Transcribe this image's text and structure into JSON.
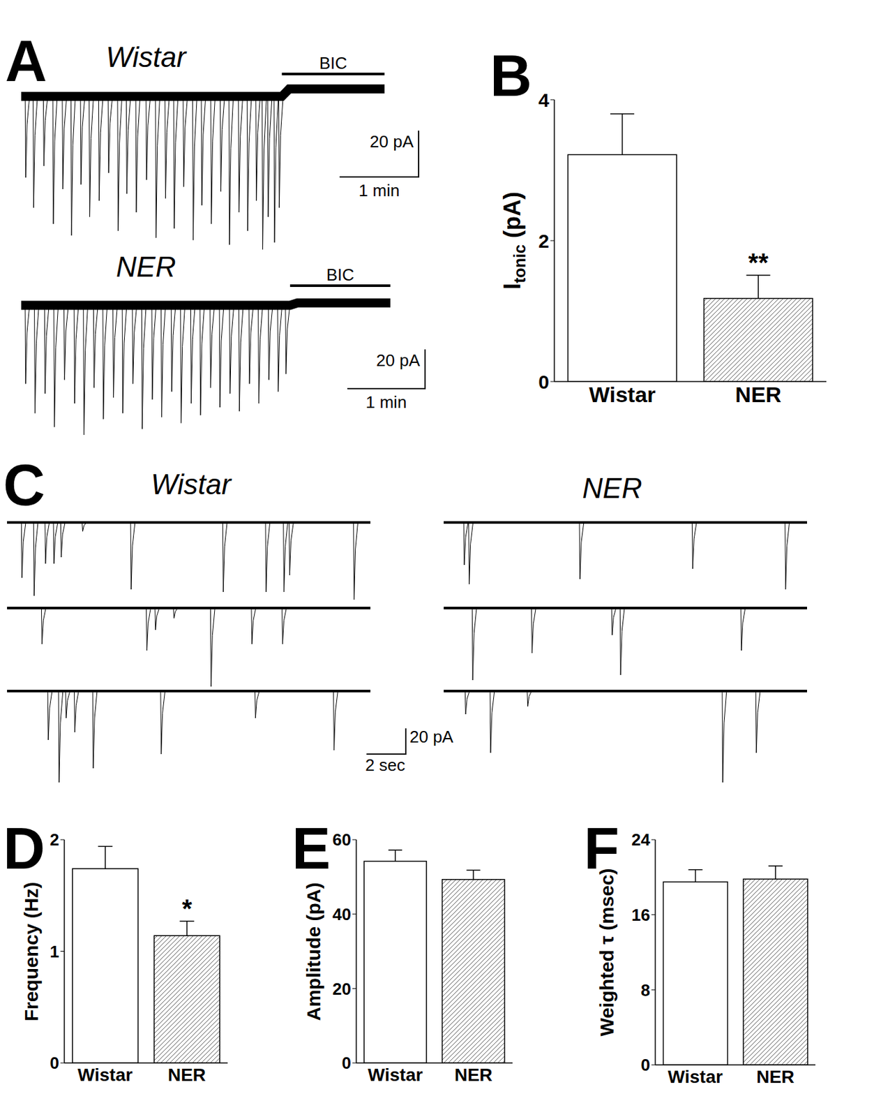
{
  "chart_data": [
    {
      "panel": "A",
      "type": "trace",
      "tick_labels": false,
      "traces": [
        {
          "name": "Wistar",
          "xlim": [
            0,
            4.6
          ],
          "ylim": [
            -70,
            8
          ],
          "baseline": 0,
          "events_t": [
            0.05,
            0.15,
            0.28,
            0.4,
            0.52,
            0.63,
            0.75,
            0.86,
            0.98,
            1.1,
            1.22,
            1.33,
            1.45,
            1.58,
            1.7,
            1.82,
            1.93,
            2.05,
            2.17,
            2.28,
            2.4,
            2.52,
            2.63,
            2.75,
            2.86,
            2.97,
            3.05,
            3.12,
            3.2,
            3.26
          ],
          "events_amp": [
            -35,
            -48,
            -30,
            -55,
            -40,
            -60,
            -38,
            -52,
            -45,
            -33,
            -58,
            -42,
            -50,
            -36,
            -61,
            -44,
            -57,
            -39,
            -62,
            -47,
            -55,
            -41,
            -64,
            -50,
            -58,
            -45,
            -66,
            -52,
            -63,
            -48
          ],
          "drug": {
            "label": "BIC",
            "start": 3.3,
            "end": 4.6,
            "baseline": 3.2
          },
          "scale_bar": {
            "x": 1,
            "x_label": "1 min",
            "y": 20,
            "y_label": "20 pA"
          }
        },
        {
          "name": "NER",
          "xlim": [
            0,
            4.75
          ],
          "ylim": [
            -70,
            8
          ],
          "baseline": 0,
          "events_t": [
            0.05,
            0.17,
            0.3,
            0.42,
            0.55,
            0.68,
            0.8,
            0.93,
            1.05,
            1.18,
            1.3,
            1.43,
            1.55,
            1.68,
            1.8,
            1.93,
            2.05,
            2.18,
            2.3,
            2.43,
            2.55,
            2.68,
            2.8,
            2.93,
            3.05,
            3.18,
            3.3,
            3.4
          ],
          "events_amp": [
            -40,
            -55,
            -45,
            -62,
            -38,
            -50,
            -66,
            -42,
            -58,
            -47,
            -55,
            -40,
            -63,
            -48,
            -57,
            -44,
            -60,
            -50,
            -56,
            -42,
            -52,
            -45,
            -54,
            -40,
            -50,
            -38,
            -44,
            -35
          ],
          "drug": {
            "label": "BIC",
            "start": 3.46,
            "end": 4.75,
            "baseline": 1.2
          },
          "scale_bar": {
            "x": 1,
            "x_label": "1 min",
            "y": 20,
            "y_label": "20 pA"
          }
        }
      ]
    },
    {
      "panel": "B",
      "type": "bar",
      "categories": [
        "Wistar",
        "NER"
      ],
      "values": [
        3.22,
        1.18
      ],
      "errors": [
        0.58,
        0.33
      ],
      "significance": [
        null,
        "**"
      ],
      "ylabel": {
        "base": "I",
        "sub": "tonic",
        "unit": "(pA)"
      },
      "ylim": [
        0,
        4
      ],
      "yticks": [
        0,
        2,
        4
      ],
      "colors": [
        "#ffffff",
        "#ffffff"
      ]
    },
    {
      "panel": "C",
      "type": "trace",
      "tick_labels": false,
      "xlim": [
        0,
        18.5
      ],
      "ylim": [
        -75,
        6
      ],
      "scale_bar": {
        "x": 2,
        "x_label": "2 sec",
        "y": 20,
        "y_label": "20 pA"
      },
      "columns": [
        {
          "name": "Wistar",
          "rows": [
            {
              "baseline": 0,
              "events_t": [
                0.73,
                1.35,
                1.93,
                2.36,
                2.73,
                3.82,
                6.29,
                10.98,
                13.16,
                14.07,
                14.36,
                17.64
              ],
              "events_amp": [
                -43,
                -57,
                -32,
                -32,
                -27,
                -7,
                -52,
                -54,
                -54,
                -54,
                -41,
                -60
              ]
            },
            {
              "baseline": 0,
              "events_t": [
                1.75,
                7.09,
                7.53,
                8.47,
                10.36,
                12.44,
                14.0
              ],
              "events_amp": [
                -28,
                -33,
                -17,
                -8,
                -61,
                -28,
                -28
              ]
            },
            {
              "baseline": 0,
              "events_t": [
                2.07,
                2.62,
                2.98,
                3.42,
                4.36,
                7.82,
                12.62,
                16.62
              ],
              "events_amp": [
                -38,
                -71,
                -21,
                -32,
                -60,
                -49,
                -21,
                -46
              ]
            }
          ]
        },
        {
          "name": "NER",
          "rows": [
            {
              "baseline": 0,
              "events_t": [
                1.02,
                1.27,
                6.91,
                12.65,
                17.38
              ],
              "events_amp": [
                -33,
                -48,
                -44,
                -36,
                -52
              ]
            },
            {
              "baseline": 0,
              "events_t": [
                1.45,
                4.47,
                8.55,
                8.98,
                15.13
              ],
              "events_amp": [
                -56,
                -35,
                -21,
                -52,
                -33
              ]
            },
            {
              "baseline": 0,
              "events_t": [
                1.09,
                2.36,
                4.25,
                14.18,
                15.89
              ],
              "events_amp": [
                -18,
                -48,
                -12,
                -71,
                -48
              ]
            }
          ]
        }
      ]
    },
    {
      "panel": "D",
      "type": "bar",
      "categories": [
        "Wistar",
        "NER"
      ],
      "values": [
        1.74,
        1.14
      ],
      "errors": [
        0.2,
        0.13
      ],
      "significance": [
        null,
        "*"
      ],
      "ylabel": "Frequency (Hz)",
      "ylim": [
        0,
        2
      ],
      "yticks": [
        0,
        1,
        2
      ],
      "colors": [
        "#ffffff",
        "#ffffff"
      ]
    },
    {
      "panel": "E",
      "type": "bar",
      "categories": [
        "Wistar",
        "NER"
      ],
      "values": [
        54.2,
        49.3
      ],
      "errors": [
        3.0,
        2.5
      ],
      "significance": [
        null,
        null
      ],
      "ylabel": "Amplitude (pA)",
      "ylim": [
        0,
        60
      ],
      "yticks": [
        0,
        20,
        40,
        60
      ],
      "colors": [
        "#ffffff",
        "#ffffff"
      ]
    },
    {
      "panel": "F",
      "type": "bar",
      "categories": [
        "Wistar",
        "NER"
      ],
      "values": [
        19.5,
        19.8
      ],
      "errors": [
        1.3,
        1.4
      ],
      "significance": [
        null,
        null
      ],
      "ylabel": "Weighted τ (msec)",
      "ylim": [
        0,
        24
      ],
      "yticks": [
        0,
        8,
        16,
        24
      ],
      "colors": [
        "#ffffff",
        "#ffffff"
      ]
    }
  ]
}
